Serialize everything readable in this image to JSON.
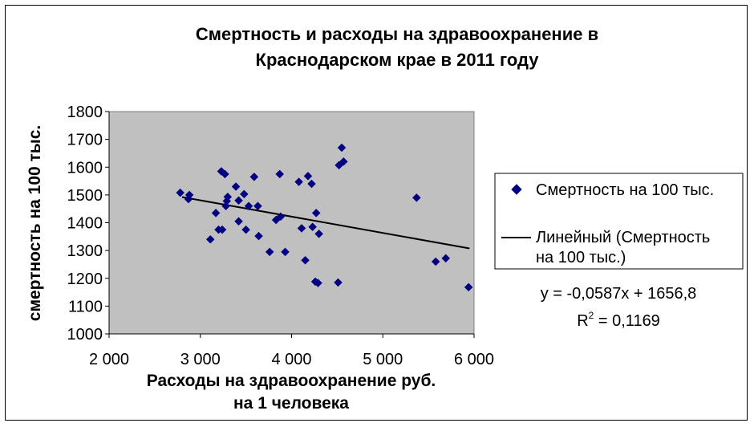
{
  "chart_data": {
    "type": "scatter",
    "title_line1": "Смертность и расходы на здравоохранение в",
    "title_line2": "Краснодарском крае в 2011 году",
    "ylabel": "смертность на 100 тыс.",
    "xlabel_line1": "Расходы на здравоохранение руб.",
    "xlabel_line2": "на 1 человека",
    "xlim": [
      2000,
      6000
    ],
    "ylim": [
      1000,
      1800
    ],
    "x_ticks": [
      2000,
      3000,
      4000,
      5000,
      6000
    ],
    "x_tick_labels": [
      "2 000",
      "3 000",
      "4 000",
      "5 000",
      "6 000"
    ],
    "y_ticks": [
      1000,
      1100,
      1200,
      1300,
      1400,
      1500,
      1600,
      1700,
      1800
    ],
    "y_tick_labels": [
      "1000",
      "1100",
      "1200",
      "1300",
      "1400",
      "1500",
      "1600",
      "1700",
      "1800"
    ],
    "grid": false,
    "plot_background": "#c0c0c0",
    "legend_position": "right",
    "series": [
      {
        "name": "Смертность на 100 тыс.",
        "color": "#000080",
        "marker": "diamond",
        "points": [
          [
            2780,
            1508
          ],
          [
            2870,
            1485
          ],
          [
            2880,
            1500
          ],
          [
            3110,
            1340
          ],
          [
            3170,
            1435
          ],
          [
            3200,
            1375
          ],
          [
            3240,
            1375
          ],
          [
            3230,
            1585
          ],
          [
            3270,
            1575
          ],
          [
            3280,
            1460
          ],
          [
            3290,
            1478
          ],
          [
            3300,
            1493
          ],
          [
            3390,
            1530
          ],
          [
            3420,
            1480
          ],
          [
            3420,
            1405
          ],
          [
            3480,
            1503
          ],
          [
            3500,
            1375
          ],
          [
            3530,
            1460
          ],
          [
            3590,
            1565
          ],
          [
            3630,
            1460
          ],
          [
            3640,
            1352
          ],
          [
            3760,
            1295
          ],
          [
            3830,
            1410
          ],
          [
            3870,
            1575
          ],
          [
            3880,
            1422
          ],
          [
            3930,
            1295
          ],
          [
            4080,
            1547
          ],
          [
            4110,
            1380
          ],
          [
            4150,
            1265
          ],
          [
            4180,
            1568
          ],
          [
            4220,
            1540
          ],
          [
            4230,
            1385
          ],
          [
            4260,
            1188
          ],
          [
            4270,
            1435
          ],
          [
            4290,
            1183
          ],
          [
            4300,
            1360
          ],
          [
            4510,
            1185
          ],
          [
            4520,
            1607
          ],
          [
            4550,
            1670
          ],
          [
            4570,
            1620
          ],
          [
            5370,
            1490
          ],
          [
            5580,
            1260
          ],
          [
            5690,
            1272
          ],
          [
            5940,
            1168
          ]
        ]
      }
    ],
    "trendline": {
      "name": "Линейный (Смертность на 100 тыс.)",
      "legend_line1": "Линейный (Смертность",
      "legend_line2": "на 100 тыс.)",
      "type": "linear",
      "slope": -0.0587,
      "intercept": 1656.8,
      "x_range": [
        2800,
        5950
      ],
      "color": "#000000",
      "equation": "y = -0,0587x + 1656,8",
      "r2_prefix": "R",
      "r2_sup": "2",
      "r2_value": " = 0,1169"
    }
  }
}
